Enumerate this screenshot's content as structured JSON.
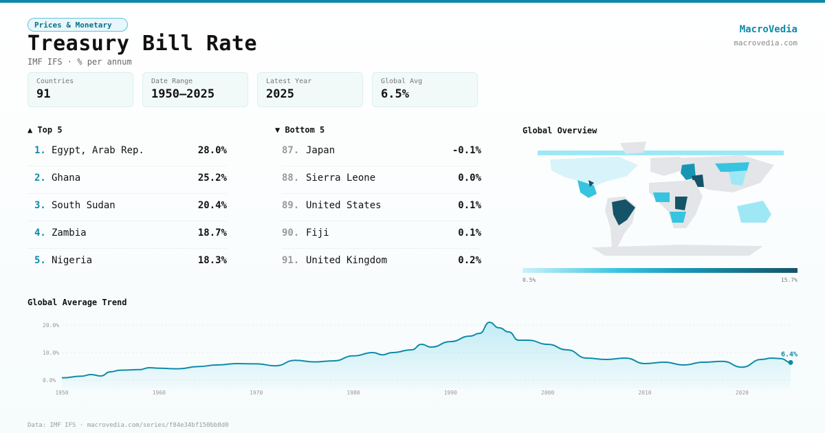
{
  "header": {
    "category": "Prices & Monetary",
    "title": "Treasury Bill Rate",
    "subtitle": "IMF IFS · % per annum",
    "brand": "MacroVedia",
    "site": "macrovedia.com"
  },
  "stats": [
    {
      "label": "Countries",
      "value": "91"
    },
    {
      "label": "Date Range",
      "value": "1950–2025"
    },
    {
      "label": "Latest Year",
      "value": "2025"
    },
    {
      "label": "Global Avg",
      "value": "6.5%"
    }
  ],
  "top5": {
    "heading": "▲ Top 5",
    "items": [
      {
        "rank": "1.",
        "name": "Egypt, Arab Rep.",
        "value": "28.0%"
      },
      {
        "rank": "2.",
        "name": "Ghana",
        "value": "25.2%"
      },
      {
        "rank": "3.",
        "name": "South Sudan",
        "value": "20.4%"
      },
      {
        "rank": "4.",
        "name": "Zambia",
        "value": "18.7%"
      },
      {
        "rank": "5.",
        "name": "Nigeria",
        "value": "18.3%"
      }
    ]
  },
  "bottom5": {
    "heading": "▼ Bottom 5",
    "items": [
      {
        "rank": "87.",
        "name": "Japan",
        "value": "-0.1%"
      },
      {
        "rank": "88.",
        "name": "Sierra Leone",
        "value": "0.0%"
      },
      {
        "rank": "89.",
        "name": "United States",
        "value": "0.1%"
      },
      {
        "rank": "90.",
        "name": "Fiji",
        "value": "0.1%"
      },
      {
        "rank": "91.",
        "name": "United Kingdom",
        "value": "0.2%"
      }
    ]
  },
  "map": {
    "heading": "Global Overview",
    "legend_min": "0.5%",
    "legend_max": "15.7%",
    "colors": {
      "low": "#cbf1fa",
      "mid": "#37c4e0",
      "high": "#155468",
      "nodata": "#e3e5e8"
    }
  },
  "trend_heading": "Global Average Trend",
  "footer": "Data: IMF IFS · macrovedia.com/series/f84e34bf150bb8d0",
  "chart_data": {
    "type": "area",
    "title": "Global Average Trend",
    "xlabel": "",
    "ylabel": "% per annum",
    "x": [
      1950,
      1952,
      1953,
      1954,
      1955,
      1956,
      1958,
      1959,
      1960,
      1962,
      1964,
      1966,
      1968,
      1970,
      1972,
      1974,
      1976,
      1978,
      1980,
      1982,
      1983,
      1984,
      1986,
      1987,
      1988,
      1990,
      1992,
      1993,
      1994,
      1995,
      1996,
      1997,
      1998,
      2000,
      2002,
      2004,
      2006,
      2008,
      2010,
      2012,
      2014,
      2016,
      2018,
      2020,
      2022,
      2023,
      2024,
      2025
    ],
    "values": [
      0.8,
      1.4,
      2.0,
      1.5,
      3.0,
      3.6,
      3.8,
      4.5,
      4.3,
      4.1,
      4.9,
      5.5,
      6.0,
      5.9,
      5.2,
      7.2,
      6.6,
      7.0,
      8.8,
      10.0,
      9.2,
      10.0,
      11.0,
      13.0,
      12.0,
      14.0,
      16.0,
      17.0,
      21.0,
      19.0,
      17.5,
      14.5,
      14.5,
      13.0,
      11.0,
      8.0,
      7.5,
      8.0,
      6.0,
      6.5,
      5.5,
      6.5,
      6.8,
      4.7,
      7.5,
      8.0,
      7.8,
      6.4
    ],
    "last_label": "6.4%",
    "xticks": [
      1950,
      1960,
      1970,
      1980,
      1990,
      2000,
      2010,
      2020
    ],
    "yticks": [
      {
        "v": 0,
        "label": "0.0%"
      },
      {
        "v": 10,
        "label": "10.0%"
      },
      {
        "v": 20,
        "label": "20.0%"
      }
    ],
    "xlim": [
      1950,
      2025
    ],
    "ylim": [
      0,
      25
    ]
  }
}
